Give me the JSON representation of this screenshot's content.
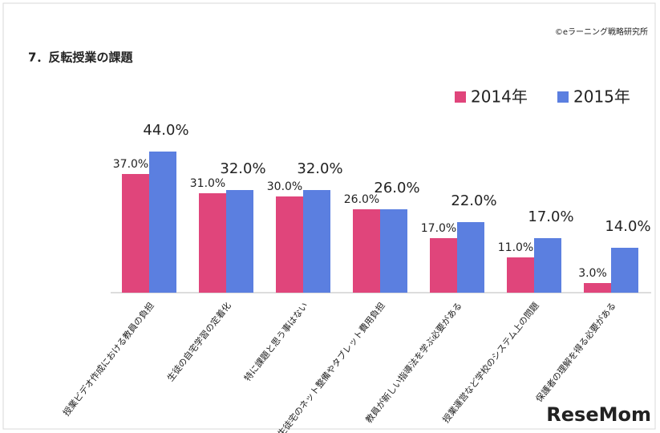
{
  "chart_data": {
    "type": "bar",
    "title": "7．反転授業の課題",
    "credit": "©eラーニング戦略研究所",
    "watermark": "ReseMom",
    "categories": [
      "授業ビデオ作成における教員の負担",
      "生徒の自宅学習の定着化",
      "特に課題と思う事はない",
      "生徒宅のネット整備やタブレット費用負担",
      "教員が新しい指導法を学ぶ必要がある",
      "授業運営など学校のシステム上の問題",
      "保護者の理解を得る必要がある"
    ],
    "series": [
      {
        "name": "2014年",
        "color": "#e0457b",
        "values": [
          37,
          31,
          30,
          26,
          17,
          11,
          3
        ],
        "value_labels": [
          "37.0%",
          "31.0%",
          "30.0%",
          "26.0%",
          "17.0%",
          "11.0%",
          "3.0%"
        ]
      },
      {
        "name": "2015年",
        "color": "#5b7fe0",
        "values": [
          44,
          32,
          32,
          26,
          22,
          17,
          14
        ],
        "value_labels": [
          "44.0%",
          "32.0%",
          "32.0%",
          "26.0%",
          "22.0%",
          "17.0%",
          "14.0%"
        ]
      }
    ],
    "legend": "top-right"
  }
}
